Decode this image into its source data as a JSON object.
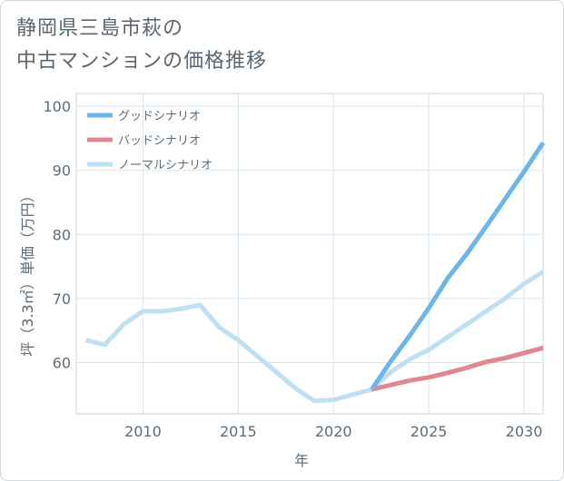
{
  "title_line1": "静岡県三島市萩の",
  "title_line2": "中古マンションの価格推移",
  "chart_data": {
    "type": "line",
    "title": "静岡県三島市萩の中古マンションの価格推移",
    "xlabel": "年",
    "ylabel": "坪（3.3㎡）単価（万円）",
    "xlim": [
      2006.5,
      2031
    ],
    "ylim": [
      52,
      102
    ],
    "x_ticks": [
      2010,
      2015,
      2020,
      2025,
      2030
    ],
    "y_ticks": [
      60,
      70,
      80,
      90,
      100
    ],
    "legend_position": "top-left",
    "series": [
      {
        "name": "グッドシナリオ",
        "color": "#6cb6ec",
        "x": [
          2022,
          2023,
          2024,
          2025,
          2026,
          2027,
          2028,
          2029,
          2030,
          2031
        ],
        "values": [
          55.8,
          60.2,
          64.2,
          68.5,
          73.2,
          77.0,
          81.2,
          85.5,
          89.8,
          94.3
        ]
      },
      {
        "name": "バッドシナリオ",
        "color": "#e08890",
        "x": [
          2022,
          2023,
          2024,
          2025,
          2026,
          2027,
          2028,
          2029,
          2030,
          2031
        ],
        "values": [
          55.8,
          56.5,
          57.2,
          57.7,
          58.4,
          59.2,
          60.1,
          60.7,
          61.5,
          62.3
        ]
      },
      {
        "name": "ノーマルシナリオ",
        "color": "#bfe0f0",
        "x": [
          2007,
          2008,
          2009,
          2010,
          2011,
          2012,
          2013,
          2014,
          2015,
          2016,
          2017,
          2018,
          2019,
          2020,
          2021,
          2022,
          2023,
          2024,
          2025,
          2026,
          2027,
          2028,
          2029,
          2030,
          2031
        ],
        "values": [
          63.5,
          62.8,
          66.0,
          68.0,
          68.0,
          68.4,
          69.0,
          65.5,
          63.5,
          61.0,
          58.5,
          56.0,
          54.0,
          54.2,
          55.0,
          55.8,
          58.5,
          60.5,
          62.0,
          64.0,
          66.0,
          68.0,
          70.0,
          72.3,
          74.2
        ]
      }
    ]
  }
}
